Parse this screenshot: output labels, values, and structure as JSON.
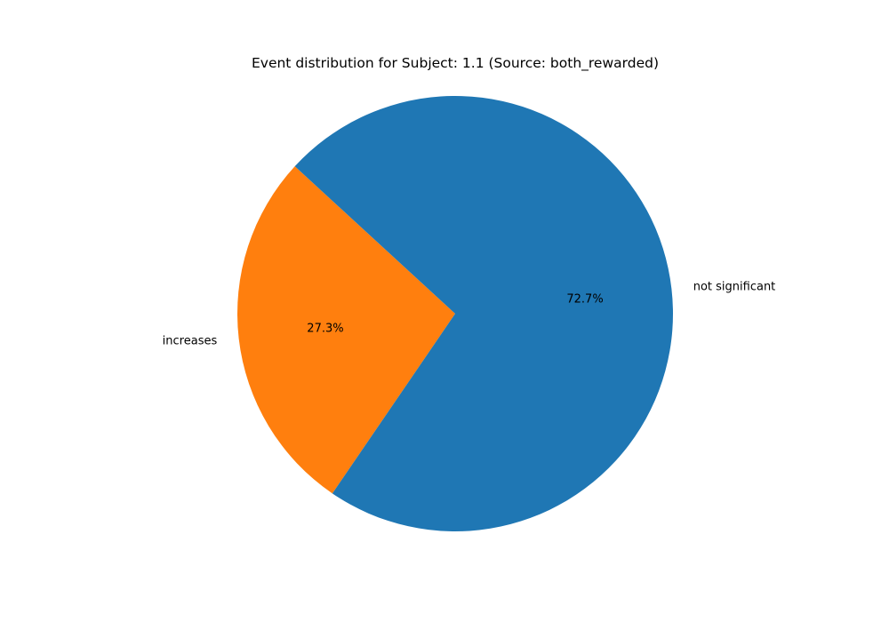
{
  "chart_data": {
    "type": "pie",
    "title": "Event distribution for Subject: 1.1 (Source: both_rewarded)",
    "slices": [
      {
        "label": "increases",
        "value": 27.3,
        "pct_label": "27.3%",
        "color": "#ff7f0e"
      },
      {
        "label": "not significant",
        "value": 72.7,
        "pct_label": "72.7%",
        "color": "#1f77b4"
      }
    ]
  }
}
